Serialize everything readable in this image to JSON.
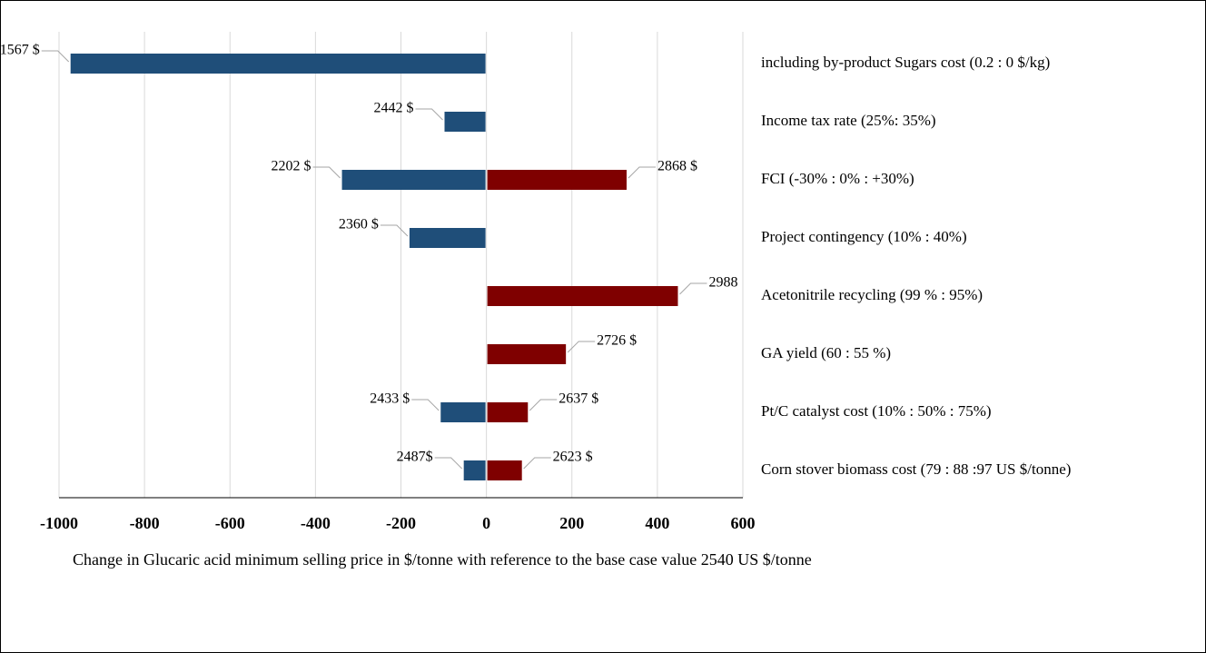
{
  "chart_data": {
    "type": "tornado",
    "categories": [
      "including by-product Sugars cost (0.2 : 0 $/kg)",
      "Income tax rate (25%: 35%)",
      "FCI (-30% : 0% : +30%)",
      "Project contingency (10% :  40%)",
      "Acetonitrile recycling (99 % : 95%)",
      "GA yield (60 : 55 %)",
      "Pt/C catalyst cost (10% : 50% : 75%)",
      "Corn stover biomass cost (79 : 88 :97 US $/tonne)"
    ],
    "series": [
      {
        "color": "#1f4e79",
        "values": [
          -973,
          -98,
          -338,
          -180,
          null,
          null,
          -107,
          -53
        ],
        "bar_labels": [
          "1567 $",
          "2442 $",
          "2202 $",
          "2360 $",
          null,
          null,
          "2433 $",
          "2487$"
        ]
      },
      {
        "color": "#7f0000",
        "values": [
          null,
          null,
          328,
          null,
          448,
          186,
          97,
          83
        ],
        "bar_labels": [
          null,
          null,
          "2868 $",
          null,
          "2988",
          "2726 $",
          "2637 $",
          "2623 $"
        ]
      }
    ],
    "xlim": [
      -1000,
      600
    ],
    "xticks": [
      -1000,
      -800,
      -600,
      -400,
      -200,
      0,
      200,
      400,
      600
    ],
    "grid": true,
    "xlabel": "Change in Glucaric acid minimum selling price in $/tonne with reference to the base case value 2540 US $/tonne"
  }
}
